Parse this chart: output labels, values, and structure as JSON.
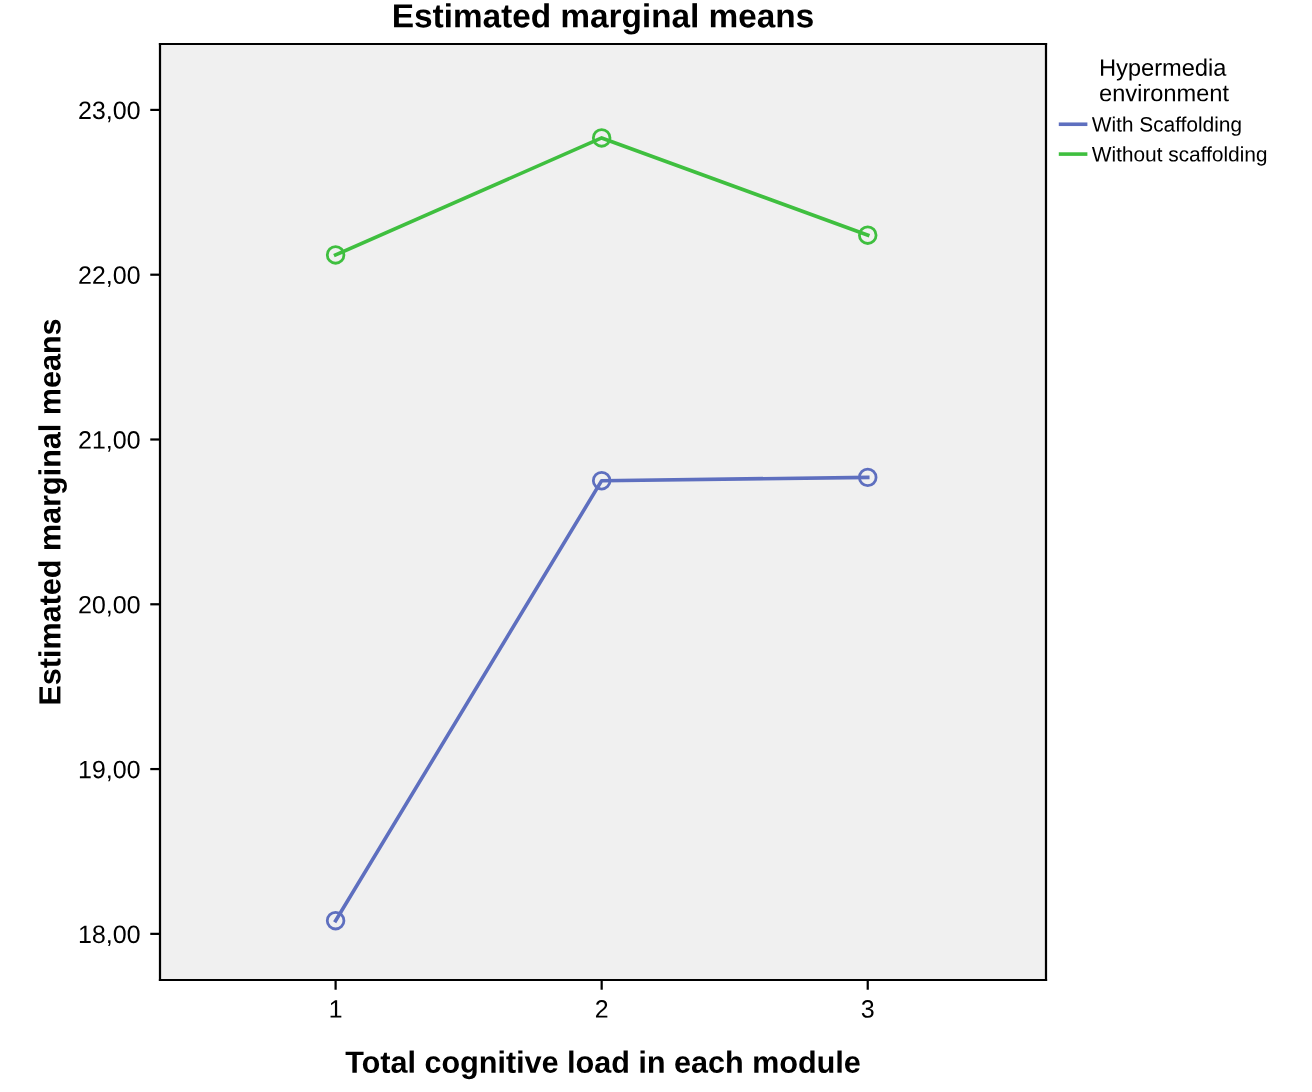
{
  "chart_data": {
    "type": "line",
    "title": "Estimated marginal means",
    "xlabel": "Total cognitive load in each module",
    "ylabel": "Estimated marginal means",
    "legend_title": "Hypermedia\nenvironment",
    "categories": [
      "1",
      "2",
      "3"
    ],
    "series": [
      {
        "name": "With Scaffolding",
        "color": "#5e6fbf",
        "values": [
          18.08,
          20.75,
          20.77
        ]
      },
      {
        "name": "Without scaffolding",
        "color": "#3fbf3f",
        "values": [
          22.12,
          22.83,
          22.24
        ]
      }
    ],
    "ylim": [
      17.72,
      23.4
    ],
    "yticks": [
      {
        "value": 18,
        "label": "18,00"
      },
      {
        "value": 19,
        "label": "19,00"
      },
      {
        "value": 20,
        "label": "20,00"
      },
      {
        "value": 21,
        "label": "21,00"
      },
      {
        "value": 22,
        "label": "22,00"
      },
      {
        "value": 23,
        "label": "23,00"
      }
    ],
    "marker": "circle",
    "legend": "right",
    "grid": false
  }
}
